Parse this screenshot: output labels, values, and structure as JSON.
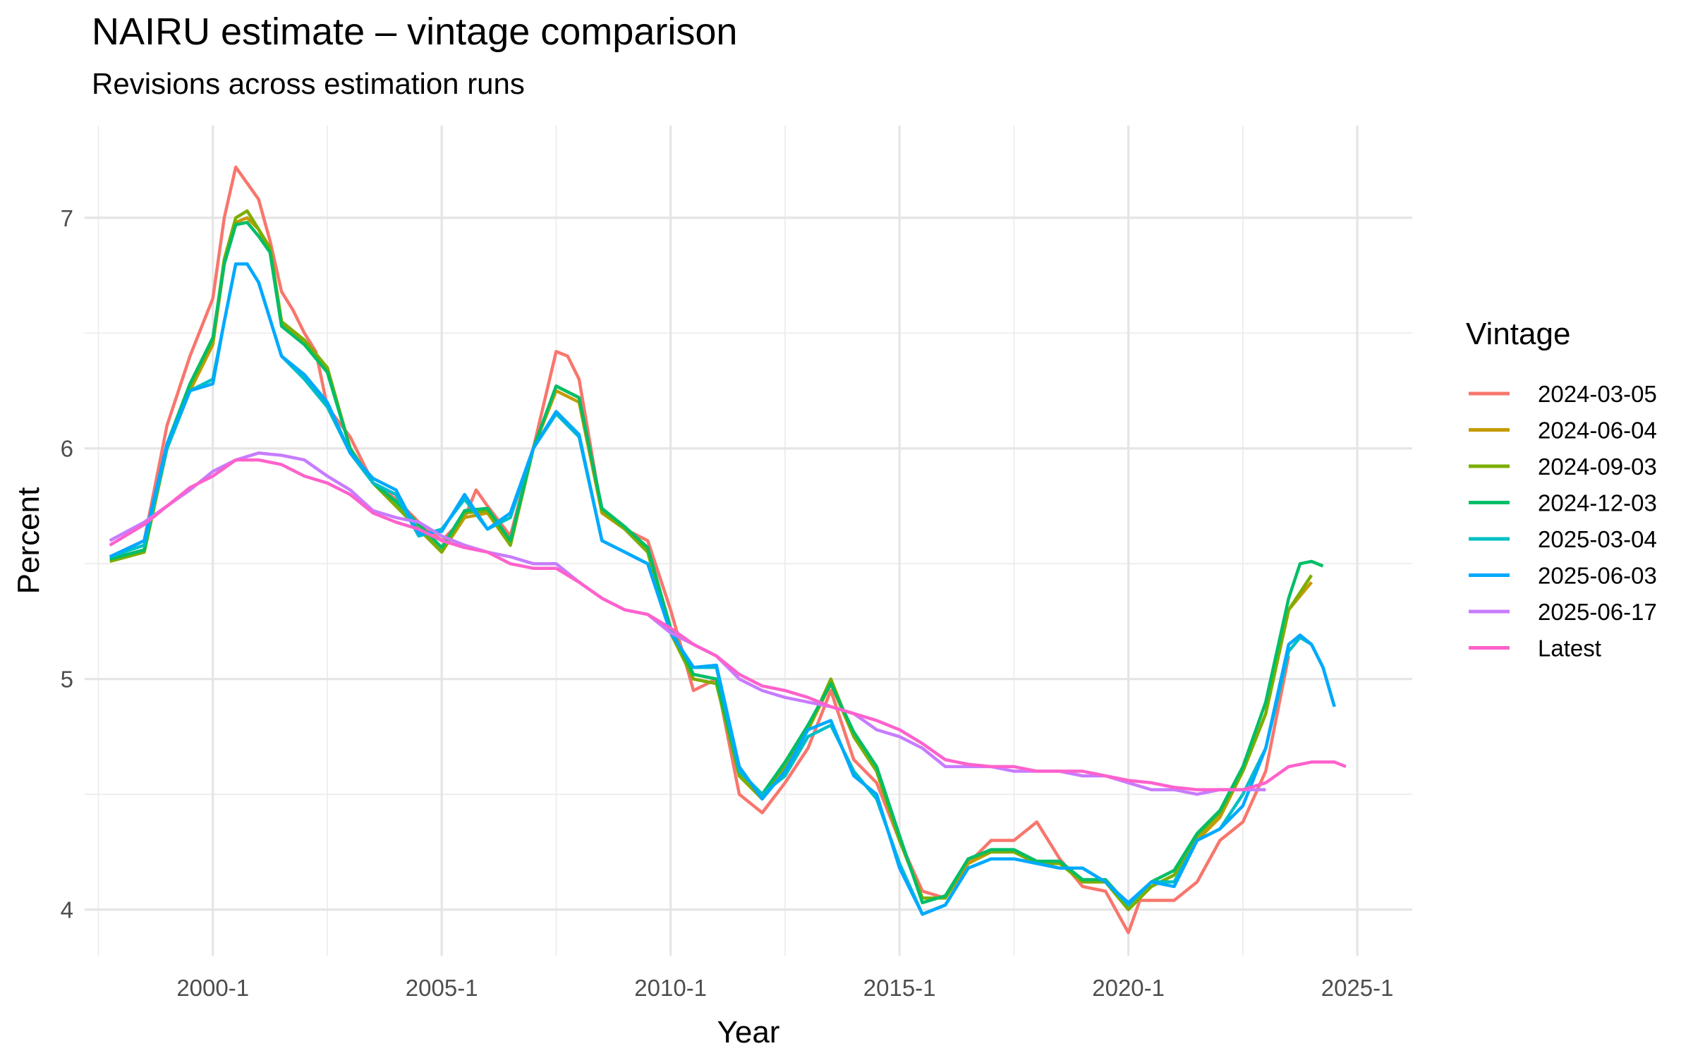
{
  "chart_data": {
    "type": "line",
    "title": "NAIRU estimate – vintage comparison",
    "subtitle": "Revisions across estimation runs",
    "xlabel": "Year",
    "ylabel": "Percent",
    "ylim": [
      3.8,
      7.4
    ],
    "y_ticks": [
      4,
      5,
      6,
      7
    ],
    "x_ticks": [
      2000,
      2005,
      2010,
      2015,
      2020,
      2025
    ],
    "x_tick_labels": [
      "2000-1",
      "2005-1",
      "2010-1",
      "2015-1",
      "2020-1",
      "2025-1"
    ],
    "xlim": [
      1997.2,
      2026.2
    ],
    "grid": true,
    "legend_title": "Vintage",
    "legend_position": "right",
    "series": [
      {
        "name": "2024-03-05",
        "color": "#F8766D",
        "x": [
          1997.75,
          1998.5,
          1999.0,
          1999.5,
          2000.0,
          2000.25,
          2000.5,
          2000.75,
          2001.0,
          2001.25,
          2001.5,
          2001.75,
          2002.0,
          2002.25,
          2002.5,
          2003.0,
          2003.5,
          2004.0,
          2004.5,
          2005.0,
          2005.5,
          2005.75,
          2006.0,
          2006.5,
          2007.0,
          2007.5,
          2007.75,
          2008.0,
          2008.5,
          2009.0,
          2009.5,
          2010.0,
          2010.5,
          2011.0,
          2011.5,
          2012.0,
          2012.5,
          2013.0,
          2013.5,
          2014.0,
          2014.5,
          2015.0,
          2015.5,
          2016.0,
          2016.5,
          2017.0,
          2017.5,
          2018.0,
          2018.5,
          2019.0,
          2019.5,
          2020.0,
          2020.25,
          2020.5,
          2021.0,
          2021.5,
          2022.0,
          2022.5,
          2023.0,
          2023.5
        ],
        "y": [
          5.53,
          5.6,
          6.1,
          6.4,
          6.65,
          7.0,
          7.22,
          7.15,
          7.08,
          6.9,
          6.68,
          6.6,
          6.5,
          6.42,
          6.18,
          6.05,
          5.85,
          5.78,
          5.68,
          5.6,
          5.7,
          5.82,
          5.75,
          5.62,
          6.0,
          6.42,
          6.4,
          6.3,
          5.72,
          5.65,
          5.6,
          5.3,
          4.95,
          5.0,
          4.5,
          4.42,
          4.55,
          4.7,
          4.95,
          4.65,
          4.55,
          4.3,
          4.08,
          4.05,
          4.2,
          4.3,
          4.3,
          4.38,
          4.22,
          4.1,
          4.08,
          3.9,
          4.04,
          4.04,
          4.04,
          4.12,
          4.3,
          4.38,
          4.6,
          5.1
        ]
      },
      {
        "name": "2024-06-04",
        "color": "#C49A00",
        "x": [
          1997.75,
          1998.5,
          1999.0,
          1999.5,
          2000.0,
          2000.25,
          2000.5,
          2000.75,
          2001.0,
          2001.25,
          2001.5,
          2002.0,
          2002.5,
          2003.0,
          2003.5,
          2004.0,
          2004.5,
          2005.0,
          2005.5,
          2006.0,
          2006.5,
          2007.0,
          2007.5,
          2008.0,
          2008.5,
          2009.0,
          2009.5,
          2010.0,
          2010.5,
          2011.0,
          2011.5,
          2012.0,
          2012.5,
          2013.0,
          2013.5,
          2014.0,
          2014.5,
          2015.0,
          2015.5,
          2016.0,
          2016.5,
          2017.0,
          2017.5,
          2018.0,
          2018.5,
          2019.0,
          2019.5,
          2020.0,
          2020.5,
          2021.0,
          2021.5,
          2022.0,
          2022.5,
          2023.0,
          2023.5,
          2024.0
        ],
        "y": [
          5.52,
          5.55,
          6.0,
          6.25,
          6.45,
          6.8,
          6.98,
          7.0,
          6.95,
          6.85,
          6.55,
          6.45,
          6.35,
          6.0,
          5.85,
          5.75,
          5.65,
          5.55,
          5.7,
          5.72,
          5.58,
          6.0,
          6.25,
          6.2,
          5.72,
          5.65,
          5.55,
          5.2,
          5.0,
          4.98,
          4.58,
          4.48,
          4.62,
          4.78,
          4.98,
          4.75,
          4.6,
          4.3,
          4.05,
          4.05,
          4.2,
          4.25,
          4.25,
          4.2,
          4.2,
          4.12,
          4.12,
          4.0,
          4.1,
          4.15,
          4.3,
          4.4,
          4.6,
          4.85,
          5.3,
          5.42
        ]
      },
      {
        "name": "2024-09-03",
        "color": "#7CAE00",
        "x": [
          1997.75,
          1998.5,
          1999.0,
          1999.5,
          2000.0,
          2000.25,
          2000.5,
          2000.75,
          2001.0,
          2001.25,
          2001.5,
          2002.0,
          2002.5,
          2003.0,
          2003.5,
          2004.0,
          2004.5,
          2005.0,
          2005.5,
          2006.0,
          2006.5,
          2007.0,
          2007.5,
          2008.0,
          2008.5,
          2009.0,
          2009.5,
          2010.0,
          2010.5,
          2011.0,
          2011.5,
          2012.0,
          2012.5,
          2013.0,
          2013.5,
          2014.0,
          2014.5,
          2015.0,
          2015.5,
          2016.0,
          2016.5,
          2017.0,
          2017.5,
          2018.0,
          2018.5,
          2019.0,
          2019.5,
          2020.0,
          2020.5,
          2021.0,
          2021.5,
          2022.0,
          2022.5,
          2023.0,
          2023.5,
          2024.0
        ],
        "y": [
          5.51,
          5.55,
          6.0,
          6.27,
          6.47,
          6.82,
          7.0,
          7.03,
          6.95,
          6.87,
          6.55,
          6.47,
          6.35,
          6.0,
          5.85,
          5.75,
          5.65,
          5.55,
          5.72,
          5.73,
          5.58,
          6.0,
          6.27,
          6.22,
          5.73,
          5.65,
          5.55,
          5.2,
          5.0,
          4.98,
          4.58,
          4.48,
          4.62,
          4.78,
          5.0,
          4.75,
          4.6,
          4.3,
          4.05,
          4.05,
          4.22,
          4.25,
          4.25,
          4.2,
          4.2,
          4.12,
          4.12,
          4.0,
          4.1,
          4.15,
          4.32,
          4.42,
          4.6,
          4.85,
          5.3,
          5.45
        ]
      },
      {
        "name": "2024-12-03",
        "color": "#00BE67",
        "x": [
          1997.75,
          1998.5,
          1999.0,
          1999.5,
          2000.0,
          2000.25,
          2000.5,
          2000.75,
          2001.0,
          2001.25,
          2001.5,
          2002.0,
          2002.5,
          2003.0,
          2003.5,
          2004.0,
          2004.5,
          2005.0,
          2005.5,
          2006.0,
          2006.5,
          2007.0,
          2007.5,
          2008.0,
          2008.5,
          2009.0,
          2009.5,
          2010.0,
          2010.5,
          2011.0,
          2011.5,
          2012.0,
          2012.5,
          2013.0,
          2013.5,
          2014.0,
          2014.5,
          2015.0,
          2015.5,
          2016.0,
          2016.5,
          2017.0,
          2017.5,
          2018.0,
          2018.5,
          2019.0,
          2019.5,
          2020.0,
          2020.5,
          2021.0,
          2021.5,
          2022.0,
          2022.5,
          2023.0,
          2023.5,
          2023.75,
          2024.0,
          2024.25
        ],
        "y": [
          5.52,
          5.56,
          6.02,
          6.28,
          6.48,
          6.8,
          6.97,
          6.98,
          6.92,
          6.85,
          6.53,
          6.45,
          6.33,
          6.0,
          5.85,
          5.77,
          5.67,
          5.57,
          5.73,
          5.74,
          5.6,
          6.0,
          6.27,
          6.22,
          5.74,
          5.66,
          5.57,
          5.22,
          5.02,
          5.0,
          4.6,
          4.5,
          4.64,
          4.8,
          4.98,
          4.77,
          4.62,
          4.32,
          4.03,
          4.06,
          4.22,
          4.26,
          4.26,
          4.21,
          4.21,
          4.13,
          4.13,
          4.02,
          4.12,
          4.17,
          4.33,
          4.43,
          4.62,
          4.9,
          5.35,
          5.5,
          5.51,
          5.49
        ]
      },
      {
        "name": "2025-03-04",
        "color": "#00BFC4",
        "x": [
          1997.75,
          1998.5,
          1999.0,
          1999.5,
          2000.0,
          2000.25,
          2000.5,
          2000.75,
          2001.0,
          2001.5,
          2002.0,
          2002.5,
          2003.0,
          2003.5,
          2004.0,
          2004.5,
          2005.0,
          2005.5,
          2006.0,
          2006.5,
          2007.0,
          2007.5,
          2008.0,
          2008.5,
          2009.0,
          2009.5,
          2010.0,
          2010.5,
          2011.0,
          2011.5,
          2012.0,
          2012.5,
          2013.0,
          2013.5,
          2014.0,
          2014.5,
          2015.0,
          2015.5,
          2016.0,
          2016.5,
          2017.0,
          2017.5,
          2018.0,
          2018.5,
          2019.0,
          2019.5,
          2020.0,
          2020.5,
          2021.0,
          2021.5,
          2022.0,
          2022.5,
          2023.0,
          2023.5,
          2023.75,
          2024.0,
          2024.25,
          2024.5
        ],
        "y": [
          5.53,
          5.58,
          6.0,
          6.25,
          6.3,
          6.55,
          6.8,
          6.8,
          6.72,
          6.4,
          6.3,
          6.18,
          5.98,
          5.85,
          5.8,
          5.62,
          5.65,
          5.78,
          5.65,
          5.7,
          6.0,
          6.15,
          6.05,
          5.6,
          5.55,
          5.5,
          5.2,
          5.05,
          5.05,
          4.6,
          4.5,
          4.58,
          4.75,
          4.8,
          4.6,
          4.48,
          4.2,
          3.98,
          4.02,
          4.18,
          4.22,
          4.22,
          4.2,
          4.18,
          4.18,
          4.12,
          4.02,
          4.12,
          4.12,
          4.3,
          4.35,
          4.5,
          4.7,
          5.12,
          5.18,
          5.15,
          5.05,
          4.88
        ]
      },
      {
        "name": "2025-06-03",
        "color": "#00A9FF",
        "x": [
          1997.75,
          1998.5,
          1999.0,
          1999.5,
          2000.0,
          2000.25,
          2000.5,
          2000.75,
          2001.0,
          2001.5,
          2002.0,
          2002.5,
          2003.0,
          2003.5,
          2004.0,
          2004.5,
          2005.0,
          2005.5,
          2006.0,
          2006.5,
          2007.0,
          2007.5,
          2008.0,
          2008.5,
          2009.0,
          2009.5,
          2010.0,
          2010.5,
          2011.0,
          2011.5,
          2012.0,
          2012.5,
          2013.0,
          2013.5,
          2014.0,
          2014.5,
          2015.0,
          2015.5,
          2016.0,
          2016.5,
          2017.0,
          2017.5,
          2018.0,
          2018.5,
          2019.0,
          2019.5,
          2020.0,
          2020.5,
          2021.0,
          2021.5,
          2022.0,
          2022.5,
          2023.0,
          2023.5,
          2023.75,
          2024.0,
          2024.25,
          2024.5
        ],
        "y": [
          5.53,
          5.6,
          6.02,
          6.25,
          6.28,
          6.55,
          6.8,
          6.8,
          6.72,
          6.4,
          6.32,
          6.2,
          5.98,
          5.87,
          5.82,
          5.63,
          5.64,
          5.8,
          5.65,
          5.72,
          6.0,
          6.16,
          6.06,
          5.6,
          5.55,
          5.5,
          5.2,
          5.05,
          5.06,
          4.62,
          4.48,
          4.6,
          4.78,
          4.82,
          4.58,
          4.5,
          4.18,
          3.98,
          4.02,
          4.18,
          4.22,
          4.22,
          4.2,
          4.18,
          4.18,
          4.12,
          4.03,
          4.12,
          4.1,
          4.3,
          4.35,
          4.45,
          4.7,
          5.15,
          5.19,
          5.15,
          5.05,
          4.88
        ]
      },
      {
        "name": "2025-06-17",
        "color": "#C77CFF",
        "x": [
          1997.75,
          1998.5,
          1999.0,
          1999.5,
          2000.0,
          2000.5,
          2001.0,
          2001.5,
          2002.0,
          2002.5,
          2003.0,
          2003.5,
          2004.0,
          2004.5,
          2005.0,
          2005.5,
          2006.0,
          2006.5,
          2007.0,
          2007.5,
          2008.0,
          2008.5,
          2009.0,
          2009.5,
          2010.0,
          2010.5,
          2011.0,
          2011.5,
          2012.0,
          2012.5,
          2013.0,
          2013.5,
          2014.0,
          2014.5,
          2015.0,
          2015.5,
          2016.0,
          2016.5,
          2017.0,
          2017.5,
          2018.0,
          2018.5,
          2019.0,
          2019.5,
          2020.0,
          2020.5,
          2021.0,
          2021.5,
          2022.0,
          2022.5,
          2023.0
        ],
        "y": [
          5.6,
          5.68,
          5.75,
          5.82,
          5.9,
          5.95,
          5.98,
          5.97,
          5.95,
          5.88,
          5.82,
          5.73,
          5.7,
          5.68,
          5.62,
          5.58,
          5.55,
          5.53,
          5.5,
          5.5,
          5.42,
          5.35,
          5.3,
          5.28,
          5.2,
          5.15,
          5.1,
          5.0,
          4.95,
          4.92,
          4.9,
          4.88,
          4.85,
          4.78,
          4.75,
          4.7,
          4.62,
          4.62,
          4.62,
          4.6,
          4.6,
          4.6,
          4.58,
          4.58,
          4.55,
          4.52,
          4.52,
          4.5,
          4.52,
          4.52,
          4.52
        ]
      },
      {
        "name": "Latest",
        "color": "#FF61CC",
        "x": [
          1997.75,
          1998.5,
          1999.0,
          1999.5,
          2000.0,
          2000.5,
          2001.0,
          2001.5,
          2002.0,
          2002.5,
          2003.0,
          2003.5,
          2004.0,
          2004.5,
          2005.0,
          2005.5,
          2006.0,
          2006.5,
          2007.0,
          2007.5,
          2008.0,
          2008.5,
          2009.0,
          2009.5,
          2010.0,
          2010.5,
          2011.0,
          2011.5,
          2012.0,
          2012.5,
          2013.0,
          2013.5,
          2014.0,
          2014.5,
          2015.0,
          2015.5,
          2016.0,
          2016.5,
          2017.0,
          2017.5,
          2018.0,
          2018.5,
          2019.0,
          2019.5,
          2020.0,
          2020.5,
          2021.0,
          2021.5,
          2022.0,
          2022.5,
          2023.0,
          2023.5,
          2024.0,
          2024.5,
          2024.75
        ],
        "y": [
          5.58,
          5.67,
          5.75,
          5.83,
          5.88,
          5.95,
          5.95,
          5.93,
          5.88,
          5.85,
          5.8,
          5.72,
          5.68,
          5.65,
          5.6,
          5.57,
          5.55,
          5.5,
          5.48,
          5.48,
          5.42,
          5.35,
          5.3,
          5.28,
          5.22,
          5.15,
          5.1,
          5.02,
          4.97,
          4.95,
          4.92,
          4.88,
          4.85,
          4.82,
          4.78,
          4.72,
          4.65,
          4.63,
          4.62,
          4.62,
          4.6,
          4.6,
          4.6,
          4.58,
          4.56,
          4.55,
          4.53,
          4.52,
          4.52,
          4.52,
          4.55,
          4.62,
          4.64,
          4.64,
          4.62
        ]
      }
    ]
  }
}
